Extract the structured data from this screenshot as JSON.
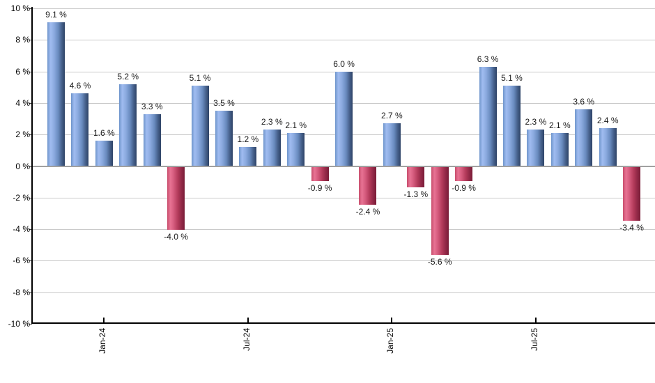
{
  "chart_data": {
    "type": "bar",
    "title": "",
    "xlabel": "",
    "ylabel": "",
    "ylim": [
      -10,
      10
    ],
    "grid": true,
    "legend": null,
    "background": "#ffffff",
    "y_ticks": [
      {
        "value": 10,
        "label": "10 %"
      },
      {
        "value": 8,
        "label": "8 %"
      },
      {
        "value": 6,
        "label": "6 %"
      },
      {
        "value": 4,
        "label": "4 %"
      },
      {
        "value": 2,
        "label": "2 %"
      },
      {
        "value": 0,
        "label": "0 %"
      },
      {
        "value": -2,
        "label": "-2 %"
      },
      {
        "value": -4,
        "label": "-4 %"
      },
      {
        "value": -6,
        "label": "-6 %"
      },
      {
        "value": -8,
        "label": "-8 %"
      },
      {
        "value": -10,
        "label": "-10 %"
      }
    ],
    "x_ticks": [
      {
        "bar_index": 2,
        "label": "Jan-24"
      },
      {
        "bar_index": 8,
        "label": "Jul-24"
      },
      {
        "bar_index": 14,
        "label": "Jan-25"
      },
      {
        "bar_index": 20,
        "label": "Jul-25"
      }
    ],
    "bars": [
      {
        "value": 9.1,
        "label": "9.1 %"
      },
      {
        "value": 4.6,
        "label": "4.6 %"
      },
      {
        "value": 1.6,
        "label": "1.6 %"
      },
      {
        "value": 5.2,
        "label": "5.2 %"
      },
      {
        "value": 3.3,
        "label": "3.3 %"
      },
      {
        "value": -4.0,
        "label": "-4.0 %"
      },
      {
        "value": 5.1,
        "label": "5.1 %"
      },
      {
        "value": 3.5,
        "label": "3.5 %"
      },
      {
        "value": 1.2,
        "label": "1.2 %"
      },
      {
        "value": 2.3,
        "label": "2.3 %"
      },
      {
        "value": 2.1,
        "label": "2.1 %"
      },
      {
        "value": -0.9,
        "label": "-0.9 %"
      },
      {
        "value": 6.0,
        "label": "6.0 %"
      },
      {
        "value": -2.4,
        "label": "-2.4 %"
      },
      {
        "value": 2.7,
        "label": "2.7 %"
      },
      {
        "value": -1.3,
        "label": "-1.3 %"
      },
      {
        "value": -5.6,
        "label": "-5.6 %"
      },
      {
        "value": -0.9,
        "label": "-0.9 %"
      },
      {
        "value": 6.3,
        "label": "6.3 %"
      },
      {
        "value": 5.1,
        "label": "5.1 %"
      },
      {
        "value": 2.3,
        "label": "2.3 %"
      },
      {
        "value": 2.1,
        "label": "2.1 %"
      },
      {
        "value": 3.6,
        "label": "3.6 %"
      },
      {
        "value": 2.4,
        "label": "2.4 %"
      },
      {
        "value": -3.4,
        "label": "-3.4 %"
      }
    ],
    "colors": {
      "positive_gradient": [
        "#6f95cb",
        "#a0bcf0",
        "#8cabe0",
        "#6a8cc0",
        "#47628d",
        "#2d4266"
      ],
      "negative_gradient": [
        "#c74d6c",
        "#e87394",
        "#d45a7c",
        "#b23a5a",
        "#922947",
        "#791c37"
      ],
      "gridline": "#c9c9c9",
      "zero_line": "#a0a0a0",
      "axis": "#000000",
      "label_text": "#1a1a1a"
    }
  }
}
